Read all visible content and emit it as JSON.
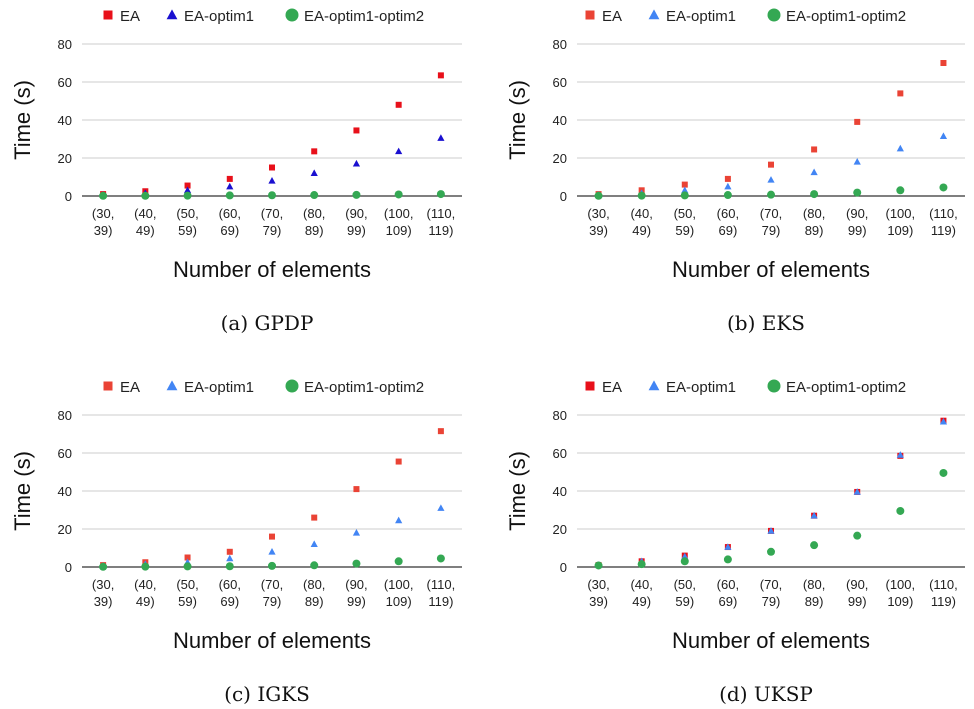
{
  "chart_data": [
    {
      "type": "scatter",
      "caption": "(a) GPDP",
      "xlabel": "Number of elements",
      "ylabel": "Time (s)",
      "ylim": [
        0,
        80
      ],
      "yticks": [
        0,
        20,
        40,
        60,
        80
      ],
      "grid": true,
      "legend": "top",
      "categories": [
        [
          "(30,",
          "39)"
        ],
        [
          "(40,",
          "49)"
        ],
        [
          "(50,",
          "59)"
        ],
        [
          "(60,",
          "69)"
        ],
        [
          "(70,",
          "79)"
        ],
        [
          "(80,",
          "89)"
        ],
        [
          "(90,",
          "99)"
        ],
        [
          "(100,",
          "109)"
        ],
        [
          "(110,",
          "119)"
        ]
      ],
      "series": [
        {
          "name": "EA",
          "marker": "square",
          "color": "#e8101a",
          "values": [
            1.0,
            2.5,
            5.5,
            9.0,
            15.0,
            23.5,
            34.5,
            48.0,
            63.5
          ]
        },
        {
          "name": "EA-optim1",
          "marker": "triangle",
          "color": "#1a10d0",
          "values": [
            0.5,
            1.5,
            3.0,
            5.0,
            8.0,
            12.0,
            17.0,
            23.5,
            30.5
          ]
        },
        {
          "name": "EA-optim1-optim2",
          "marker": "circle",
          "color": "#34a853",
          "values": [
            0.1,
            0.1,
            0.2,
            0.3,
            0.4,
            0.5,
            0.6,
            0.8,
            1.0
          ]
        }
      ]
    },
    {
      "type": "scatter",
      "caption": "(b) EKS",
      "xlabel": "Number of elements",
      "ylabel": "Time (s)",
      "ylim": [
        0,
        80
      ],
      "yticks": [
        0,
        20,
        40,
        60,
        80
      ],
      "grid": true,
      "legend": "top",
      "categories": [
        [
          "(30,",
          "39)"
        ],
        [
          "(40,",
          "49)"
        ],
        [
          "(50,",
          "59)"
        ],
        [
          "(60,",
          "69)"
        ],
        [
          "(70,",
          "79)"
        ],
        [
          "(80,",
          "89)"
        ],
        [
          "(90,",
          "99)"
        ],
        [
          "(100,",
          "109)"
        ],
        [
          "(110,",
          "119)"
        ]
      ],
      "series": [
        {
          "name": "EA",
          "marker": "square",
          "color": "#ea4335",
          "values": [
            1.0,
            3.0,
            6.0,
            9.0,
            16.5,
            24.5,
            39.0,
            54.0,
            70.0
          ]
        },
        {
          "name": "EA-optim1",
          "marker": "triangle",
          "color": "#4285f4",
          "values": [
            0.5,
            1.5,
            3.0,
            5.0,
            8.5,
            12.5,
            18.0,
            25.0,
            31.5
          ]
        },
        {
          "name": "EA-optim1-optim2",
          "marker": "circle",
          "color": "#34a853",
          "values": [
            0.1,
            0.2,
            0.3,
            0.5,
            0.7,
            1.0,
            1.8,
            3.0,
            4.5
          ]
        }
      ]
    },
    {
      "type": "scatter",
      "caption": "(c) IGKS",
      "xlabel": "Number of elements",
      "ylabel": "Time (s)",
      "ylim": [
        0,
        80
      ],
      "yticks": [
        0,
        20,
        40,
        60,
        80
      ],
      "grid": true,
      "legend": "top",
      "categories": [
        [
          "(30,",
          "39)"
        ],
        [
          "(40,",
          "49)"
        ],
        [
          "(50,",
          "59)"
        ],
        [
          "(60,",
          "69)"
        ],
        [
          "(70,",
          "79)"
        ],
        [
          "(80,",
          "89)"
        ],
        [
          "(90,",
          "99)"
        ],
        [
          "(100,",
          "109)"
        ],
        [
          "(110,",
          "119)"
        ]
      ],
      "series": [
        {
          "name": "EA",
          "marker": "square",
          "color": "#ea4335",
          "values": [
            1.0,
            2.5,
            5.0,
            8.0,
            16.0,
            26.0,
            41.0,
            55.5,
            71.5
          ]
        },
        {
          "name": "EA-optim1",
          "marker": "triangle",
          "color": "#4285f4",
          "values": [
            0.5,
            1.5,
            2.5,
            4.5,
            8.0,
            12.0,
            18.0,
            24.5,
            31.0
          ]
        },
        {
          "name": "EA-optim1-optim2",
          "marker": "circle",
          "color": "#34a853",
          "values": [
            0.1,
            0.2,
            0.3,
            0.4,
            0.6,
            0.9,
            1.8,
            3.0,
            4.5
          ]
        }
      ]
    },
    {
      "type": "scatter",
      "caption": "(d) UKSP",
      "xlabel": "Number of elements",
      "ylabel": "Time (s)",
      "ylim": [
        0,
        80
      ],
      "yticks": [
        0,
        20,
        40,
        60,
        80
      ],
      "grid": true,
      "legend": "top",
      "categories": [
        [
          "(30,",
          "39)"
        ],
        [
          "(40,",
          "49)"
        ],
        [
          "(50,",
          "59)"
        ],
        [
          "(60,",
          "69)"
        ],
        [
          "(70,",
          "79)"
        ],
        [
          "(80,",
          "89)"
        ],
        [
          "(90,",
          "99)"
        ],
        [
          "(100,",
          "109)"
        ],
        [
          "(110,",
          "119)"
        ]
      ],
      "series": [
        {
          "name": "EA",
          "marker": "square",
          "color": "#e8101a",
          "values": [
            1.0,
            3.0,
            6.0,
            10.5,
            19.0,
            27.0,
            39.5,
            58.5,
            77.0
          ]
        },
        {
          "name": "EA-optim1",
          "marker": "triangle",
          "color": "#4285f4",
          "values": [
            1.0,
            3.0,
            5.5,
            10.5,
            19.0,
            27.0,
            39.5,
            59.0,
            76.5
          ]
        },
        {
          "name": "EA-optim1-optim2",
          "marker": "circle",
          "color": "#34a853",
          "values": [
            0.8,
            1.5,
            3.0,
            4.0,
            8.0,
            11.5,
            16.5,
            29.5,
            49.5
          ]
        }
      ]
    }
  ]
}
